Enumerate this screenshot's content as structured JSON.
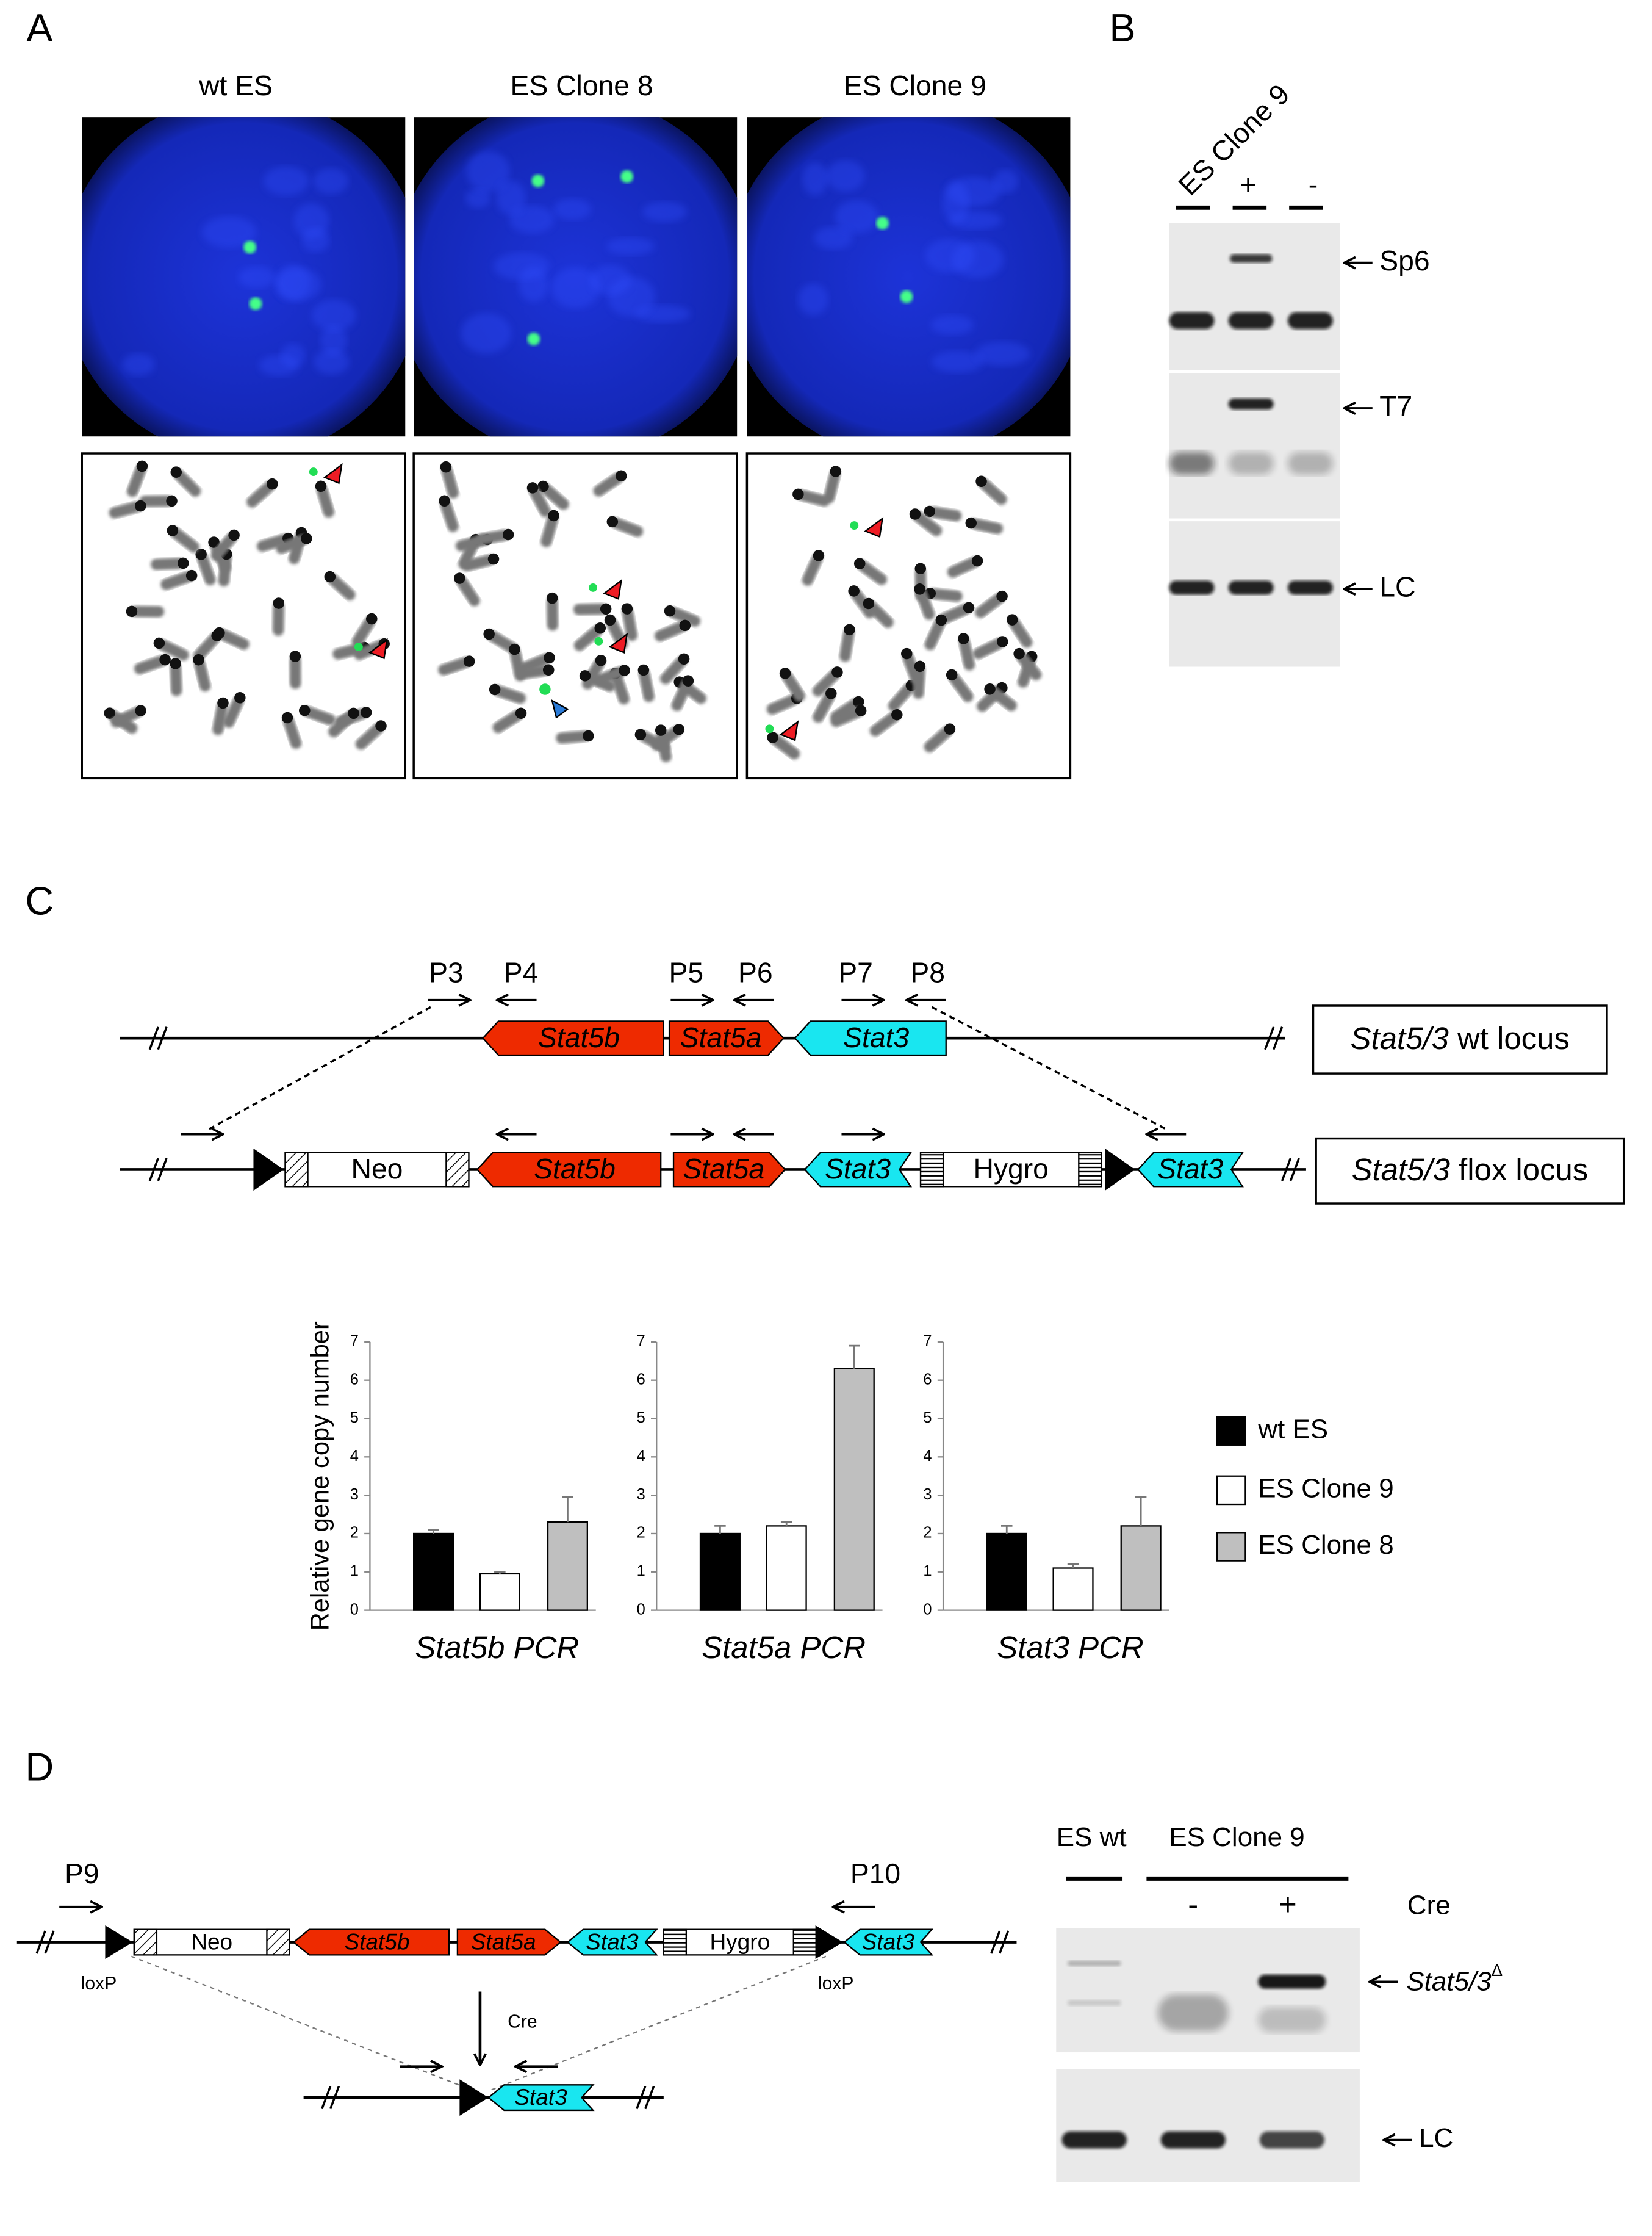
{
  "panel_labels": [
    "A",
    "B",
    "C",
    "D"
  ],
  "panel_a": {
    "columns": [
      "wt ES",
      "ES Clone 8",
      "ES Clone 9"
    ]
  },
  "panel_b": {
    "lanes": [
      "ES Clone 9",
      "+",
      "-"
    ],
    "bands": [
      "Sp6",
      "T7",
      "LC"
    ]
  },
  "panel_c": {
    "primers": [
      "P3",
      "P4",
      "P5",
      "P6",
      "P7",
      "P8"
    ],
    "genes": {
      "stat5b": "Stat5b",
      "stat5a": "Stat5a",
      "stat3": "Stat3",
      "neo": "Neo",
      "hygro": "Hygro"
    },
    "wt_locus": {
      "italic": "Stat5/3",
      "text": " wt locus"
    },
    "flox_locus": {
      "italic": "Stat5/3",
      "text": " flox locus"
    }
  },
  "chart_data": [
    {
      "type": "bar",
      "title": "Stat5b PCR",
      "title_color": "#ff2a00",
      "ylabel": "Relative gene copy number",
      "ylim": [
        0,
        7
      ],
      "yticks": [
        0,
        1,
        2,
        3,
        4,
        5,
        6,
        7
      ],
      "series": [
        {
          "name": "wt ES",
          "color": "#000000",
          "values": [
            2.0
          ],
          "errors": [
            0.1
          ]
        },
        {
          "name": "ES Clone 9",
          "color": "#ffffff",
          "values": [
            0.95
          ],
          "errors": [
            0.05
          ]
        },
        {
          "name": "ES Clone 8",
          "color": "#bfbfbf",
          "values": [
            2.3
          ],
          "errors": [
            0.65
          ]
        }
      ]
    },
    {
      "type": "bar",
      "title": "Stat5a PCR",
      "title_color": "#ff2a00",
      "ylim": [
        0,
        7
      ],
      "yticks": [
        0,
        1,
        2,
        3,
        4,
        5,
        6,
        7
      ],
      "series": [
        {
          "color": "#000000",
          "values": [
            2.0
          ],
          "errors": [
            0.2
          ]
        },
        {
          "color": "#ffffff",
          "values": [
            2.2
          ],
          "errors": [
            0.1
          ]
        },
        {
          "color": "#bfbfbf",
          "values": [
            6.3
          ],
          "errors": [
            0.6
          ]
        }
      ]
    },
    {
      "type": "bar",
      "title": "Stat3 PCR",
      "title_color": "#1cc8e8",
      "ylim": [
        0,
        7
      ],
      "yticks": [
        0,
        1,
        2,
        3,
        4,
        5,
        6,
        7
      ],
      "series": [
        {
          "color": "#000000",
          "values": [
            2.0
          ],
          "errors": [
            0.2
          ]
        },
        {
          "color": "#ffffff",
          "values": [
            1.1
          ],
          "errors": [
            0.1
          ]
        },
        {
          "color": "#bfbfbf",
          "values": [
            2.2
          ],
          "errors": [
            0.75
          ]
        }
      ]
    }
  ],
  "panel_d": {
    "primers": [
      "P9",
      "P10"
    ],
    "loxp": "loxP",
    "cre_arrow": "Cre",
    "gel_groups": [
      "ES wt",
      "ES Clone 9"
    ],
    "gel_lanes": [
      "-",
      "+"
    ],
    "gel_cre": "Cre",
    "product": {
      "base": "Stat5/3",
      "sup": "Δ"
    },
    "lc": "LC"
  }
}
